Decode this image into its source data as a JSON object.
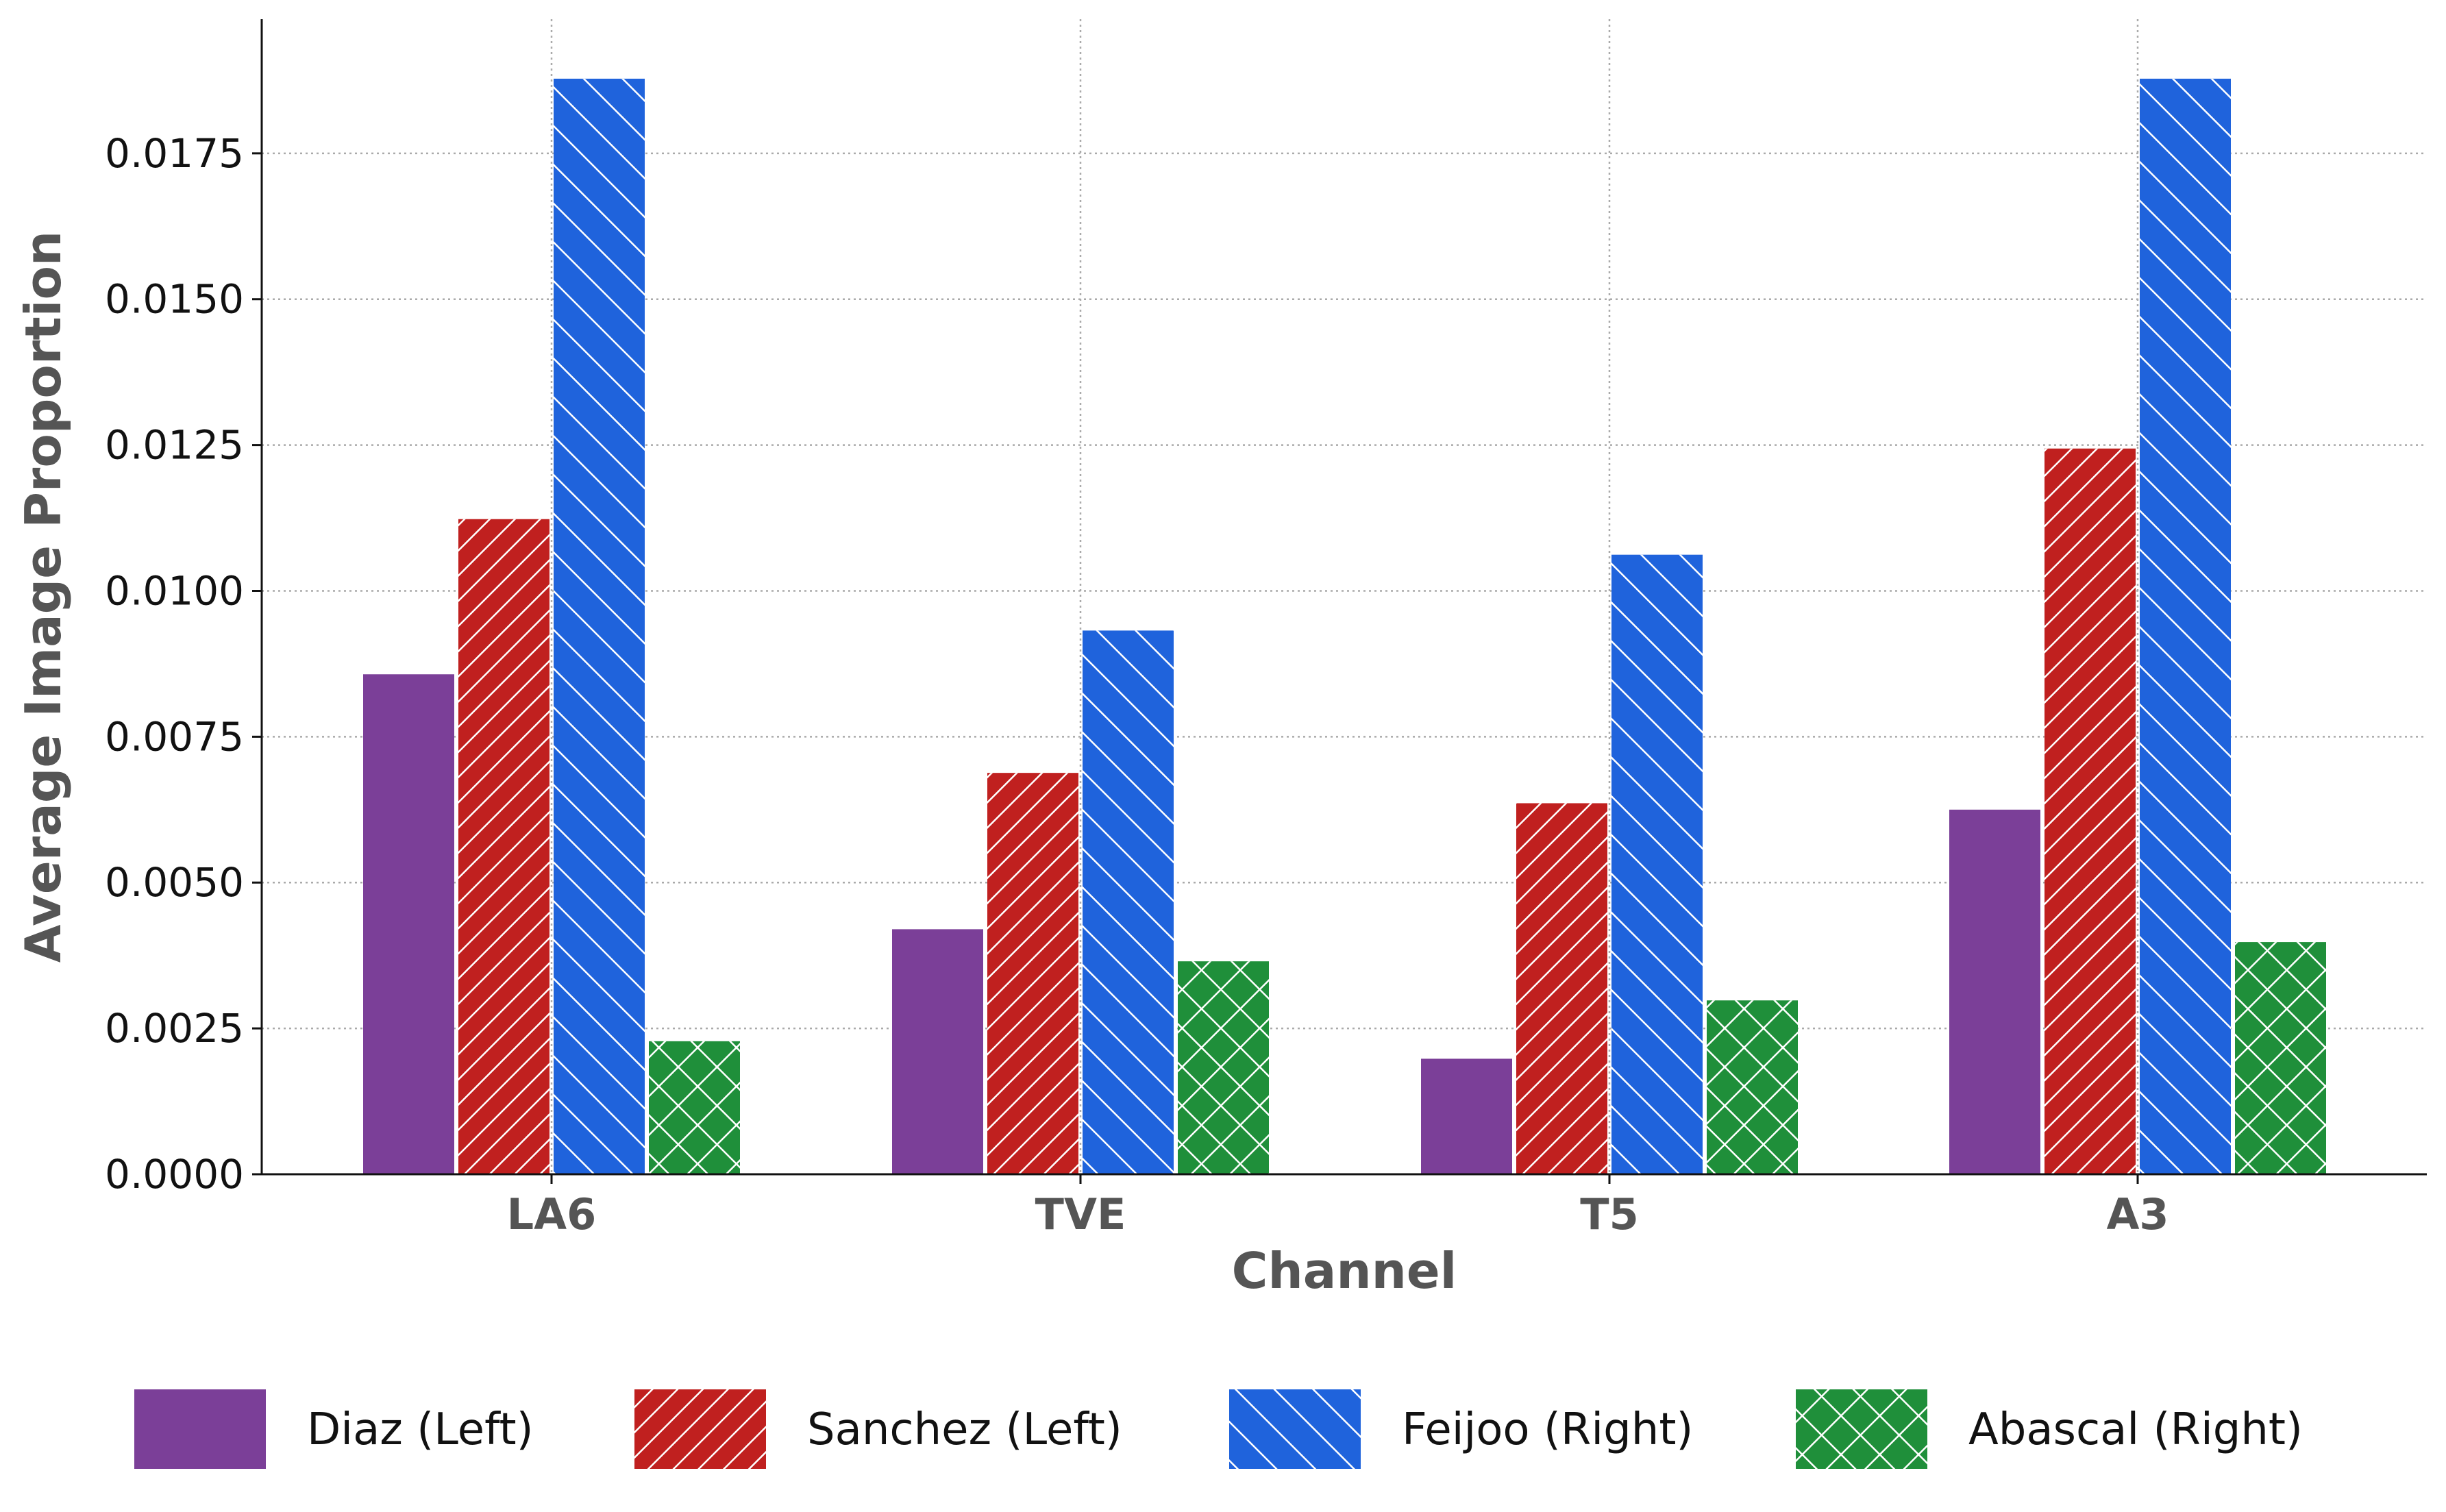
{
  "chart_data": {
    "type": "bar",
    "title": "",
    "xlabel": "Channel",
    "ylabel": "Average Image Proportion",
    "categories": [
      "LA6",
      "TVE",
      "T5",
      "A3"
    ],
    "ylim": [
      0,
      0.0198
    ],
    "yticks": [
      "0.0000",
      "0.0025",
      "0.0050",
      "0.0075",
      "0.0100",
      "0.0125",
      "0.0150",
      "0.0175"
    ],
    "grid": true,
    "legend_position": "bottom",
    "series": [
      {
        "name": "Diaz (Left)",
        "color": "#7b3f98",
        "pattern": "solid",
        "values": [
          0.00857,
          0.0042,
          0.00198,
          0.00625
        ]
      },
      {
        "name": "Sanchez (Left)",
        "color": "#c0201f",
        "pattern": "diagonal-forward",
        "values": [
          0.01123,
          0.00688,
          0.00636,
          0.01244
        ]
      },
      {
        "name": "Feijoo (Right)",
        "color": "#1f63dc",
        "pattern": "diagonal-back",
        "values": [
          0.01878,
          0.00932,
          0.01062,
          0.01878
        ]
      },
      {
        "name": "Abascal (Right)",
        "color": "#1f8f3a",
        "pattern": "crosshatch",
        "values": [
          0.00228,
          0.00365,
          0.00298,
          0.00398
        ]
      }
    ]
  }
}
